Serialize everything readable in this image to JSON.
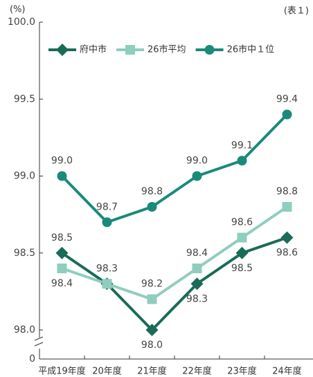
{
  "chart_data": {
    "type": "line",
    "unit_label": "(%)",
    "annotation": "(表１)",
    "categories": [
      "平成19年度",
      "20年度",
      "21年度",
      "22年度",
      "23年度",
      "24年度"
    ],
    "series": [
      {
        "name": "府中市",
        "color": "#1a6b57",
        "marker": "diamond",
        "values": [
          98.5,
          98.3,
          98.0,
          98.3,
          98.5,
          98.6
        ],
        "value_labels": [
          "98.5",
          null,
          "98.0",
          "98.3",
          "98.5",
          "98.6"
        ]
      },
      {
        "name": "26市平均",
        "color": "#8fcdbf",
        "marker": "square",
        "values": [
          98.4,
          98.3,
          98.2,
          98.4,
          98.6,
          98.8
        ],
        "value_labels": [
          "98.4",
          "98.3",
          "98.2",
          "98.4",
          "98.6",
          "98.8"
        ]
      },
      {
        "name": "26市中１位",
        "color": "#1a8a7a",
        "marker": "circle",
        "values": [
          99.0,
          98.7,
          98.8,
          99.0,
          99.1,
          99.4
        ],
        "value_labels": [
          "99.0",
          "98.7",
          "98.8",
          "99.0",
          "99.1",
          "99.4"
        ]
      }
    ],
    "ylim": [
      98.0,
      100.0
    ],
    "yticks": [
      0,
      {
        "value": 98.0,
        "label": "98.0"
      },
      {
        "value": 98.5,
        "label": "98.5"
      },
      {
        "value": 99.0,
        "label": "99.0"
      },
      {
        "value": 99.5,
        "label": "99.5"
      },
      {
        "value": 100.0,
        "label": "100.0"
      }
    ],
    "legend": "top"
  }
}
